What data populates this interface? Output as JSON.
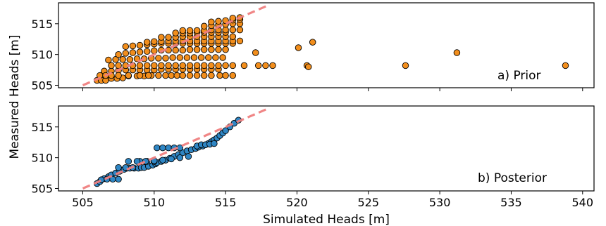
{
  "figure": {
    "xlabel": "Simulated Heads [m]",
    "ylabel": "Measured Heads [m]"
  },
  "colors": {
    "prior_fill": "#f28e1c",
    "posterior_fill": "#2f86c4",
    "marker_edge": "#000000",
    "one_to_one_line": "#f08080"
  },
  "chart_data": [
    {
      "type": "scatter",
      "panel_label": "a) Prior",
      "xlim": [
        503.3,
        540.8
      ],
      "ylim": [
        504.6,
        518.4
      ],
      "xticks": [],
      "yticks": [
        "505",
        "510",
        "515"
      ],
      "grid": false,
      "legend": "none",
      "reference_line": {
        "x": [
          505.0,
          518.0
        ],
        "y": [
          505.0,
          518.0
        ],
        "style": "dashed"
      },
      "series": [
        {
          "x": [
            506.0,
            506.3,
            506.6,
            507.0,
            507.4,
            507.8,
            508.2,
            508.8,
            509.3,
            509.8,
            510.3,
            510.8,
            511.2,
            511.6,
            512.0,
            512.5,
            513.0,
            513.5,
            514.0,
            514.6,
            515.0,
            515.5,
            506.5,
            507.0,
            507.5,
            508.0,
            508.5,
            509.0,
            509.5,
            510.0,
            510.5,
            511.0,
            511.5,
            512.0,
            512.5,
            513.0,
            513.5,
            514.0,
            514.5,
            507.0,
            507.5,
            508.0,
            508.5,
            509.0,
            509.5,
            510.0,
            510.5,
            511.0,
            511.5,
            512.0,
            512.5,
            513.0,
            513.5,
            514.0,
            514.5,
            515.0,
            515.5,
            506.8,
            507.3,
            507.8,
            508.3,
            508.8,
            509.3,
            509.8,
            510.3,
            510.8,
            511.3,
            511.8,
            512.3,
            512.8,
            513.3,
            513.8,
            514.3,
            514.8,
            507.5,
            508.0,
            508.5,
            509.0,
            509.5,
            510.0,
            510.5,
            511.0,
            511.5,
            512.0,
            512.5,
            513.0,
            513.5,
            514.0,
            514.5,
            515.0,
            508.0,
            508.5,
            509.0,
            509.5,
            510.0,
            510.5,
            511.0,
            511.5,
            512.0,
            512.5,
            513.0,
            513.5,
            514.0,
            514.5,
            515.0,
            515.5,
            509.5,
            510.0,
            510.5,
            511.0,
            511.5,
            512.0,
            512.5,
            513.0,
            513.5,
            514.0,
            514.5,
            515.0,
            515.5,
            516.0,
            510.5,
            511.0,
            511.5,
            512.0,
            512.5,
            513.0,
            513.5,
            514.0,
            514.5,
            515.0,
            515.5,
            511.5,
            512.0,
            512.5,
            513.0,
            513.5,
            514.0,
            514.5,
            515.0,
            512.0,
            512.5,
            513.0,
            513.5,
            514.0,
            514.5,
            515.0,
            515.5,
            516.0,
            513.5,
            514.0,
            514.5,
            515.0,
            515.5,
            516.0,
            514.0,
            514.5,
            515.0,
            515.5,
            516.0,
            515.5,
            516.0,
            506.2,
            506.6,
            507.0,
            507.5,
            508.2,
            509.0,
            509.6,
            516.3,
            517.1,
            517.3,
            517.8,
            518.3,
            520.1,
            520.7,
            520.8,
            521.1,
            527.6,
            531.2,
            538.8
          ],
          "y": [
            505.8,
            505.8,
            505.8,
            506.1,
            506.1,
            506.2,
            506.5,
            506.5,
            506.5,
            506.6,
            506.6,
            506.6,
            506.6,
            506.6,
            506.6,
            506.6,
            506.6,
            506.6,
            506.6,
            506.6,
            506.6,
            506.6,
            507.3,
            507.3,
            507.4,
            507.5,
            507.5,
            507.5,
            507.5,
            507.5,
            507.6,
            507.6,
            507.6,
            507.6,
            507.6,
            507.6,
            507.6,
            507.6,
            507.6,
            508.2,
            508.2,
            508.2,
            508.2,
            508.2,
            508.2,
            508.2,
            508.2,
            508.2,
            508.2,
            508.2,
            508.2,
            508.2,
            508.2,
            508.2,
            508.2,
            508.2,
            508.2,
            509.1,
            509.2,
            509.2,
            509.2,
            509.3,
            509.3,
            509.4,
            509.4,
            509.4,
            509.5,
            509.5,
            509.5,
            509.5,
            509.5,
            509.5,
            509.5,
            509.5,
            510.0,
            510.2,
            510.3,
            510.4,
            510.5,
            510.6,
            510.7,
            510.7,
            510.7,
            510.7,
            510.8,
            510.8,
            510.8,
            510.8,
            510.8,
            510.8,
            511.3,
            511.4,
            511.5,
            511.6,
            511.7,
            511.8,
            511.8,
            511.8,
            511.8,
            511.8,
            511.8,
            511.8,
            511.8,
            511.8,
            511.8,
            511.8,
            512.0,
            512.1,
            512.1,
            512.2,
            512.2,
            512.2,
            512.2,
            512.2,
            512.2,
            512.2,
            512.2,
            512.2,
            512.2,
            512.2,
            512.8,
            512.8,
            512.8,
            512.9,
            512.9,
            512.9,
            512.9,
            512.9,
            512.9,
            512.9,
            512.9,
            513.5,
            513.5,
            513.5,
            513.6,
            513.6,
            513.6,
            513.6,
            513.6,
            513.9,
            513.9,
            513.9,
            513.9,
            514.0,
            514.0,
            514.0,
            514.0,
            514.0,
            514.6,
            514.7,
            514.8,
            514.9,
            515.0,
            515.0,
            515.3,
            515.4,
            515.5,
            515.6,
            515.7,
            515.9,
            516.0,
            506.6,
            506.6,
            506.6,
            506.6,
            506.6,
            506.6,
            506.6,
            508.2,
            510.3,
            508.2,
            508.2,
            508.2,
            511.1,
            508.2,
            508.0,
            512.0,
            508.2,
            510.3,
            508.2
          ]
        }
      ]
    },
    {
      "type": "scatter",
      "panel_label": "b) Posterior",
      "xlim": [
        503.3,
        540.8
      ],
      "ylim": [
        504.6,
        518.4
      ],
      "xticks": [
        "505",
        "510",
        "515",
        "520",
        "525",
        "530",
        "535",
        "540"
      ],
      "yticks": [
        "505",
        "510",
        "515"
      ],
      "grid": false,
      "legend": "none",
      "reference_line": {
        "x": [
          505.0,
          518.0
        ],
        "y": [
          505.0,
          518.0
        ],
        "style": "dashed"
      },
      "series": [
        {
          "x": [
            506.0,
            506.2,
            506.3,
            506.5,
            506.8,
            507.0,
            507.3,
            507.6,
            507.9,
            508.1,
            508.3,
            508.6,
            508.9,
            509.1,
            509.3,
            509.6,
            509.9,
            510.1,
            510.2,
            510.5,
            510.8,
            511.1,
            511.4,
            511.7,
            512.0,
            512.3,
            512.6,
            512.9,
            513.1,
            513.4,
            513.6,
            513.8,
            514.0,
            514.2,
            514.4,
            514.6,
            514.8,
            515.0,
            515.3,
            515.6,
            515.9,
            507.5,
            508.0,
            508.5,
            509.0,
            509.5,
            510.0,
            510.5,
            510.2,
            510.6,
            511.0,
            511.4,
            511.8,
            508.2,
            508.8,
            509.4,
            510.0,
            510.6,
            511.2,
            511.8,
            512.4,
            513.0,
            513.3,
            513.6,
            513.9,
            514.2,
            506.3,
            506.7,
            507.1,
            507.5
          ],
          "y": [
            505.8,
            506.1,
            506.4,
            506.6,
            506.9,
            507.2,
            507.5,
            507.8,
            508.1,
            508.3,
            508.3,
            508.3,
            508.3,
            508.4,
            508.4,
            508.6,
            508.8,
            509.0,
            509.2,
            509.4,
            509.6,
            509.9,
            510.2,
            510.5,
            510.8,
            511.1,
            511.3,
            511.5,
            511.7,
            511.9,
            512.1,
            512.3,
            512.6,
            512.9,
            513.2,
            513.6,
            514.0,
            514.4,
            515.0,
            515.6,
            516.1,
            508.4,
            508.4,
            508.4,
            509.4,
            509.4,
            509.4,
            509.4,
            511.6,
            511.6,
            511.6,
            511.6,
            511.6,
            509.4,
            509.4,
            509.4,
            509.5,
            509.6,
            509.8,
            510.0,
            510.2,
            511.9,
            512.1,
            512.1,
            512.2,
            512.3,
            506.4,
            506.5,
            506.5,
            506.5
          ]
        }
      ]
    }
  ]
}
